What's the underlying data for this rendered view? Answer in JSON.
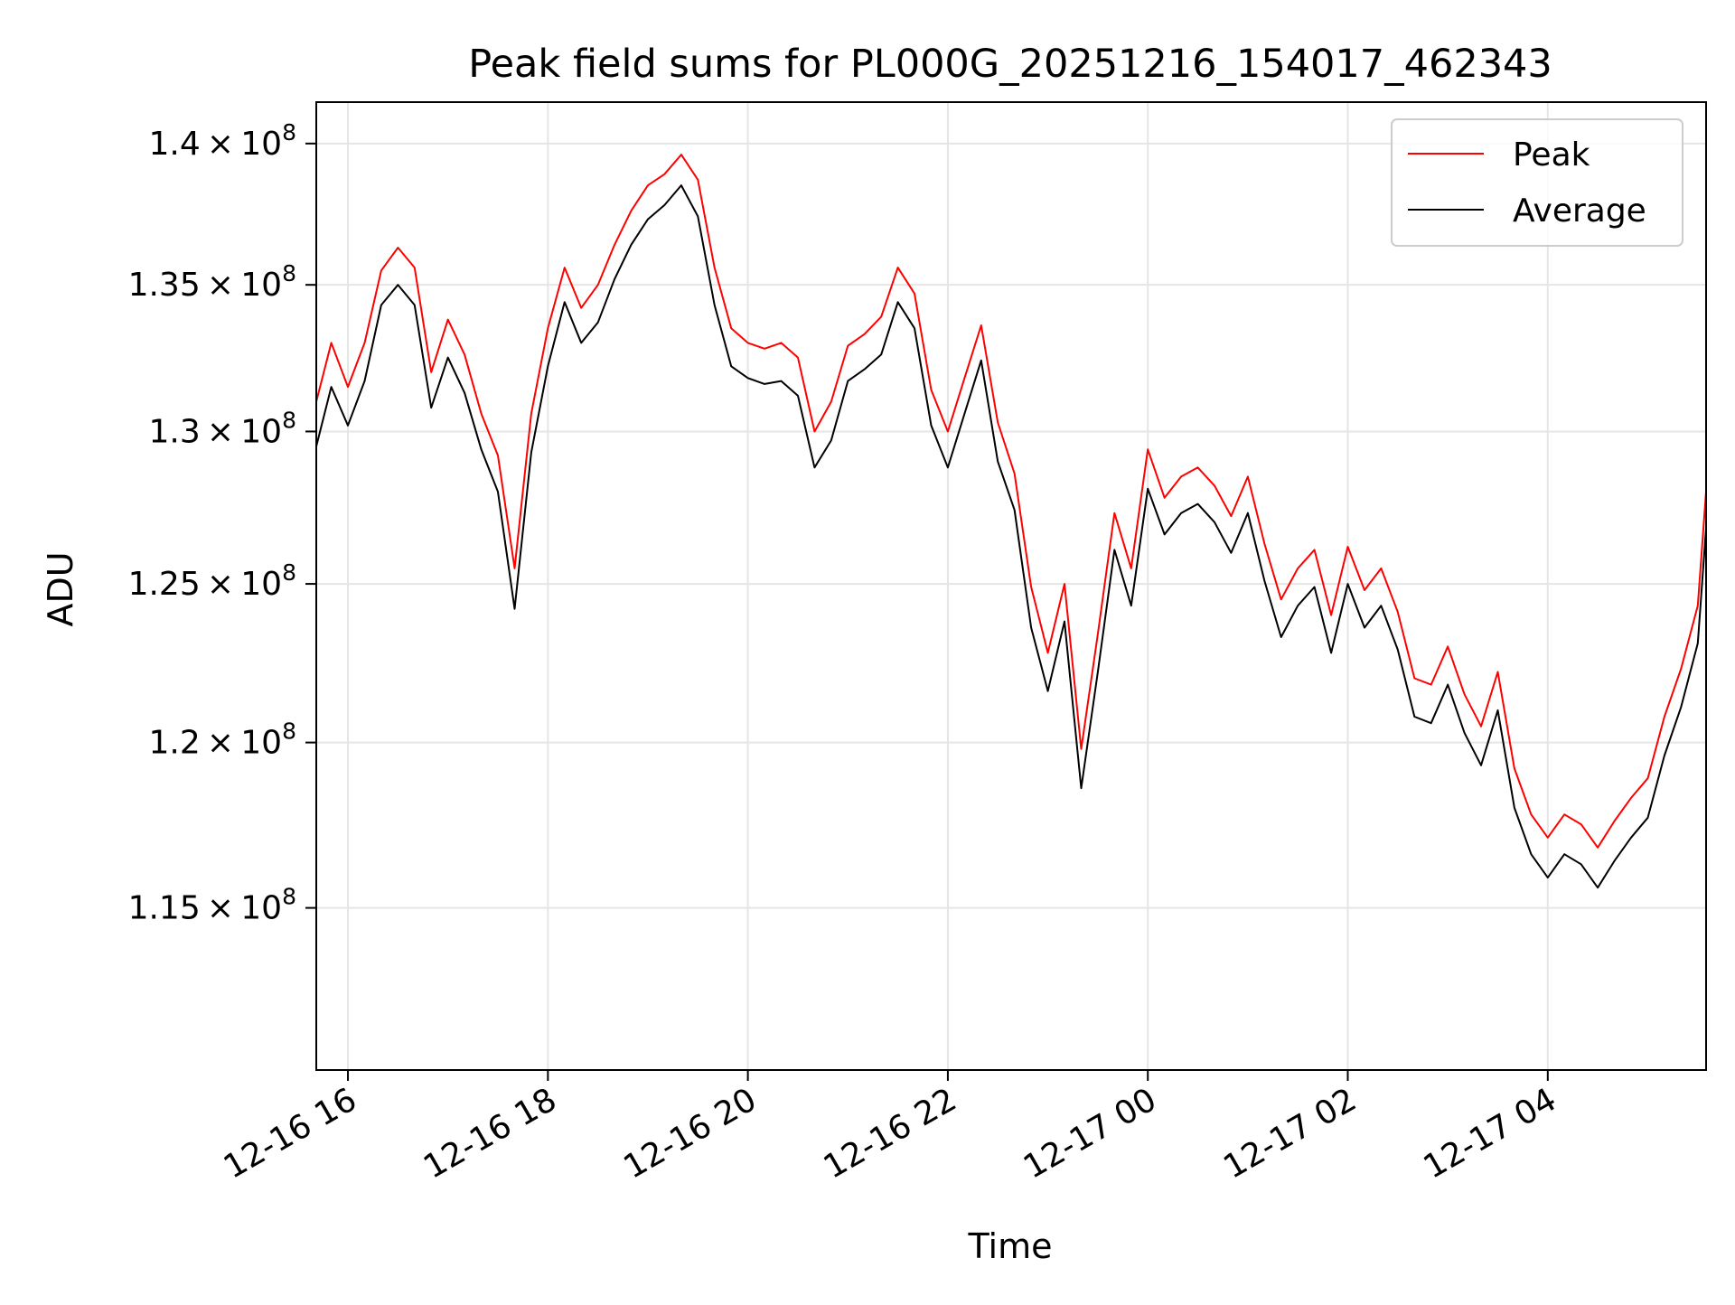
{
  "chart_data": {
    "type": "line",
    "title": "Peak field sums for PL000G_20251216_154017_462343",
    "xlabel": "Time",
    "ylabel": "ADU",
    "y_scale": "log",
    "grid": true,
    "legend_position": "top-right",
    "x_tick_labels": [
      "12-16 16",
      "12-16 18",
      "12-16 20",
      "12-16 22",
      "12-17 00",
      "12-17 02",
      "12-17 04"
    ],
    "x_ticks": [
      "2025-12-16 16:00",
      "2025-12-16 18:00",
      "2025-12-16 20:00",
      "2025-12-16 22:00",
      "2025-12-17 00:00",
      "2025-12-17 02:00",
      "2025-12-17 04:00"
    ],
    "xlim": [
      "2025-12-16 15:41",
      "2025-12-17 05:35"
    ],
    "y_ticks": [
      {
        "mantissa": "1.15",
        "exponent": "8",
        "value": 115000000
      },
      {
        "mantissa": "1.2",
        "exponent": "8",
        "value": 120000000
      },
      {
        "mantissa": "1.25",
        "exponent": "8",
        "value": 125000000
      },
      {
        "mantissa": "1.3",
        "exponent": "8",
        "value": 130000000
      },
      {
        "mantissa": "1.35",
        "exponent": "8",
        "value": 135000000
      },
      {
        "mantissa": "1.4",
        "exponent": "8",
        "value": 140000000
      }
    ],
    "ylim": [
      110300000,
      141500000
    ],
    "series": [
      {
        "name": "Peak",
        "color": "#ff0000",
        "x": [
          "2025-12-16 15:41",
          "2025-12-16 15:50",
          "2025-12-16 16:00",
          "2025-12-16 16:10",
          "2025-12-16 16:20",
          "2025-12-16 16:30",
          "2025-12-16 16:40",
          "2025-12-16 16:50",
          "2025-12-16 17:00",
          "2025-12-16 17:10",
          "2025-12-16 17:20",
          "2025-12-16 17:30",
          "2025-12-16 17:40",
          "2025-12-16 17:50",
          "2025-12-16 18:00",
          "2025-12-16 18:10",
          "2025-12-16 18:20",
          "2025-12-16 18:30",
          "2025-12-16 18:40",
          "2025-12-16 18:50",
          "2025-12-16 19:00",
          "2025-12-16 19:10",
          "2025-12-16 19:20",
          "2025-12-16 19:30",
          "2025-12-16 19:40",
          "2025-12-16 19:50",
          "2025-12-16 20:00",
          "2025-12-16 20:10",
          "2025-12-16 20:20",
          "2025-12-16 20:30",
          "2025-12-16 20:40",
          "2025-12-16 20:50",
          "2025-12-16 21:00",
          "2025-12-16 21:10",
          "2025-12-16 21:20",
          "2025-12-16 21:30",
          "2025-12-16 21:40",
          "2025-12-16 21:50",
          "2025-12-16 22:00",
          "2025-12-16 22:10",
          "2025-12-16 22:20",
          "2025-12-16 22:30",
          "2025-12-16 22:40",
          "2025-12-16 22:50",
          "2025-12-16 23:00",
          "2025-12-16 23:10",
          "2025-12-16 23:20",
          "2025-12-16 23:30",
          "2025-12-16 23:40",
          "2025-12-16 23:50",
          "2025-12-17 00:00",
          "2025-12-17 00:10",
          "2025-12-17 00:20",
          "2025-12-17 00:30",
          "2025-12-17 00:40",
          "2025-12-17 00:50",
          "2025-12-17 01:00",
          "2025-12-17 01:10",
          "2025-12-17 01:20",
          "2025-12-17 01:30",
          "2025-12-17 01:40",
          "2025-12-17 01:50",
          "2025-12-17 02:00",
          "2025-12-17 02:10",
          "2025-12-17 02:20",
          "2025-12-17 02:30",
          "2025-12-17 02:40",
          "2025-12-17 02:50",
          "2025-12-17 03:00",
          "2025-12-17 03:10",
          "2025-12-17 03:20",
          "2025-12-17 03:30",
          "2025-12-17 03:40",
          "2025-12-17 03:50",
          "2025-12-17 04:00",
          "2025-12-17 04:10",
          "2025-12-17 04:20",
          "2025-12-17 04:30",
          "2025-12-17 04:40",
          "2025-12-17 04:50",
          "2025-12-17 05:00",
          "2025-12-17 05:10",
          "2025-12-17 05:20",
          "2025-12-17 05:30",
          "2025-12-17 05:35"
        ],
        "values": [
          131000000,
          133000000,
          131500000,
          133000000,
          135500000,
          136300000,
          135600000,
          132000000,
          133800000,
          132600000,
          130600000,
          129200000,
          125500000,
          130600000,
          133500000,
          135600000,
          134200000,
          135000000,
          136400000,
          137600000,
          138500000,
          138900000,
          139600000,
          138700000,
          135600000,
          133500000,
          133000000,
          132800000,
          133000000,
          132500000,
          130000000,
          131000000,
          132900000,
          133300000,
          133900000,
          135600000,
          134700000,
          131400000,
          130000000,
          131800000,
          133600000,
          130300000,
          128600000,
          124900000,
          122800000,
          125000000,
          119800000,
          123400000,
          127300000,
          125500000,
          129400000,
          127800000,
          128500000,
          128800000,
          128200000,
          127200000,
          128500000,
          126300000,
          124500000,
          125500000,
          126100000,
          124000000,
          126200000,
          124800000,
          125500000,
          124100000,
          122000000,
          121800000,
          123000000,
          121500000,
          120500000,
          122200000,
          119200000,
          117800000,
          117100000,
          117800000,
          117500000,
          116800000,
          117600000,
          118300000,
          118900000,
          120800000,
          122300000,
          124300000,
          128000000
        ]
      },
      {
        "name": "Average",
        "color": "#000000",
        "x": [
          "2025-12-16 15:41",
          "2025-12-16 15:50",
          "2025-12-16 16:00",
          "2025-12-16 16:10",
          "2025-12-16 16:20",
          "2025-12-16 16:30",
          "2025-12-16 16:40",
          "2025-12-16 16:50",
          "2025-12-16 17:00",
          "2025-12-16 17:10",
          "2025-12-16 17:20",
          "2025-12-16 17:30",
          "2025-12-16 17:40",
          "2025-12-16 17:50",
          "2025-12-16 18:00",
          "2025-12-16 18:10",
          "2025-12-16 18:20",
          "2025-12-16 18:30",
          "2025-12-16 18:40",
          "2025-12-16 18:50",
          "2025-12-16 19:00",
          "2025-12-16 19:10",
          "2025-12-16 19:20",
          "2025-12-16 19:30",
          "2025-12-16 19:40",
          "2025-12-16 19:50",
          "2025-12-16 20:00",
          "2025-12-16 20:10",
          "2025-12-16 20:20",
          "2025-12-16 20:30",
          "2025-12-16 20:40",
          "2025-12-16 20:50",
          "2025-12-16 21:00",
          "2025-12-16 21:10",
          "2025-12-16 21:20",
          "2025-12-16 21:30",
          "2025-12-16 21:40",
          "2025-12-16 21:50",
          "2025-12-16 22:00",
          "2025-12-16 22:10",
          "2025-12-16 22:20",
          "2025-12-16 22:30",
          "2025-12-16 22:40",
          "2025-12-16 22:50",
          "2025-12-16 23:00",
          "2025-12-16 23:10",
          "2025-12-16 23:20",
          "2025-12-16 23:30",
          "2025-12-16 23:40",
          "2025-12-16 23:50",
          "2025-12-17 00:00",
          "2025-12-17 00:10",
          "2025-12-17 00:20",
          "2025-12-17 00:30",
          "2025-12-17 00:40",
          "2025-12-17 00:50",
          "2025-12-17 01:00",
          "2025-12-17 01:10",
          "2025-12-17 01:20",
          "2025-12-17 01:30",
          "2025-12-17 01:40",
          "2025-12-17 01:50",
          "2025-12-17 02:00",
          "2025-12-17 02:10",
          "2025-12-17 02:20",
          "2025-12-17 02:30",
          "2025-12-17 02:40",
          "2025-12-17 02:50",
          "2025-12-17 03:00",
          "2025-12-17 03:10",
          "2025-12-17 03:20",
          "2025-12-17 03:30",
          "2025-12-17 03:40",
          "2025-12-17 03:50",
          "2025-12-17 04:00",
          "2025-12-17 04:10",
          "2025-12-17 04:20",
          "2025-12-17 04:30",
          "2025-12-17 04:40",
          "2025-12-17 04:50",
          "2025-12-17 05:00",
          "2025-12-17 05:10",
          "2025-12-17 05:20",
          "2025-12-17 05:30",
          "2025-12-17 05:35"
        ],
        "values": [
          129500000,
          131500000,
          130200000,
          131700000,
          134300000,
          135000000,
          134300000,
          130800000,
          132500000,
          131300000,
          129400000,
          128000000,
          124200000,
          129300000,
          132200000,
          134400000,
          133000000,
          133700000,
          135200000,
          136400000,
          137300000,
          137800000,
          138500000,
          137400000,
          134300000,
          132200000,
          131800000,
          131600000,
          131700000,
          131200000,
          128800000,
          129700000,
          131700000,
          132100000,
          132600000,
          134400000,
          133500000,
          130200000,
          128800000,
          130600000,
          132400000,
          129000000,
          127400000,
          123600000,
          121600000,
          123800000,
          118600000,
          122200000,
          126100000,
          124300000,
          128100000,
          126600000,
          127300000,
          127600000,
          127000000,
          126000000,
          127300000,
          125100000,
          123300000,
          124300000,
          124900000,
          122800000,
          125000000,
          123600000,
          124300000,
          122900000,
          120800000,
          120600000,
          121800000,
          120300000,
          119300000,
          121000000,
          118000000,
          116600000,
          115900000,
          116600000,
          116300000,
          115600000,
          116400000,
          117100000,
          117700000,
          119600000,
          121100000,
          123100000,
          126800000
        ]
      }
    ]
  }
}
